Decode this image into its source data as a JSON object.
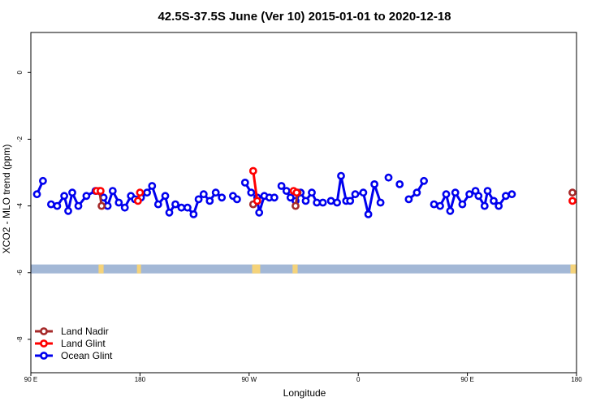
{
  "chart_data": {
    "type": "line",
    "title": "42.5S-37.5S June (Ver 10)   2015-01-01 to 2020-12-18",
    "xlabel": "Longitude",
    "ylabel": "XCO2 - MLO trend (ppm)",
    "xlim": [
      -90,
      180
    ],
    "ylim": [
      -9,
      1.2
    ],
    "x_ticks": [
      {
        "value": -90,
        "label": "90 E"
      },
      {
        "value": -36,
        "label": "180"
      },
      {
        "value": 18,
        "label": "90 W"
      },
      {
        "value": 72,
        "label": "0"
      },
      {
        "value": 126,
        "label": "90 E"
      },
      {
        "value": 180,
        "label": "180"
      }
    ],
    "y_ticks": [
      {
        "value": 0,
        "label": "0"
      },
      {
        "value": -2,
        "label": "-2"
      },
      {
        "value": -4,
        "label": "-4"
      },
      {
        "value": -6,
        "label": "-6"
      },
      {
        "value": -8,
        "label": "-8"
      }
    ],
    "grid": false,
    "legend_position": "bottom-left",
    "land_band": {
      "y": -5.95,
      "ocean_color": "#a3b8d6",
      "land_color": "#f5d37a"
    },
    "series": [
      {
        "name": "Land Nadir",
        "color": "#a52a2a",
        "segments": [
          [
            [
              -56,
              -3.55
            ],
            [
              -55,
              -4.0
            ]
          ],
          [
            [
              20,
              -3.95
            ]
          ],
          [
            [
              41,
              -4.0
            ],
            [
              42,
              -3.6
            ]
          ],
          [
            [
              178,
              -3.6
            ]
          ]
        ]
      },
      {
        "name": "Land Glint",
        "color": "#ff0000",
        "segments": [
          [
            [
              -57.5,
              -3.55
            ],
            [
              -55.5,
              -3.55
            ]
          ],
          [
            [
              -37,
              -3.85
            ],
            [
              -36,
              -3.6
            ]
          ],
          [
            [
              20,
              -2.95
            ],
            [
              22,
              -3.85
            ]
          ],
          [
            [
              40,
              -3.55
            ],
            [
              41.5,
              -3.6
            ]
          ],
          [
            [
              178,
              -3.85
            ]
          ]
        ]
      },
      {
        "name": "Ocean Glint",
        "color": "#0000ee",
        "segments": [
          [
            [
              -87,
              -3.65
            ],
            [
              -84,
              -3.25
            ]
          ],
          [
            [
              -80,
              -3.95
            ],
            [
              -77,
              -4.0
            ],
            [
              -73.5,
              -3.7
            ],
            [
              -71.5,
              -4.15
            ],
            [
              -69.5,
              -3.6
            ],
            [
              -66.5,
              -4.0
            ],
            [
              -62.5,
              -3.7
            ],
            [
              -58,
              -3.55
            ],
            [
              -54,
              -3.75
            ],
            [
              -52,
              -4.0
            ],
            [
              -49.5,
              -3.55
            ],
            [
              -46.5,
              -3.9
            ],
            [
              -43.5,
              -4.05
            ],
            [
              -40.5,
              -3.7
            ],
            [
              -38.5,
              -3.8
            ],
            [
              -35.5,
              -3.75
            ],
            [
              -32.5,
              -3.6
            ],
            [
              -30,
              -3.4
            ],
            [
              -27,
              -3.95
            ],
            [
              -23.5,
              -3.7
            ],
            [
              -21.5,
              -4.2
            ],
            [
              -18.5,
              -3.95
            ],
            [
              -15.5,
              -4.05
            ],
            [
              -12.5,
              -4.05
            ],
            [
              -9.5,
              -4.25
            ],
            [
              -7,
              -3.8
            ],
            [
              -4.5,
              -3.65
            ],
            [
              -1.5,
              -3.85
            ],
            [
              1.5,
              -3.6
            ],
            [
              4.5,
              -3.75
            ]
          ],
          [
            [
              10,
              -3.7
            ],
            [
              12,
              -3.8
            ]
          ],
          [
            [
              16,
              -3.3
            ],
            [
              19,
              -3.6
            ]
          ],
          [
            [
              22,
              -3.75
            ],
            [
              23,
              -4.2
            ],
            [
              25.5,
              -3.7
            ],
            [
              28,
              -3.75
            ],
            [
              30.5,
              -3.75
            ]
          ],
          [
            [
              34,
              -3.4
            ],
            [
              36.5,
              -3.55
            ],
            [
              38.5,
              -3.75
            ],
            [
              41,
              -3.85
            ],
            [
              43.5,
              -3.6
            ],
            [
              46,
              -3.85
            ],
            [
              49,
              -3.6
            ],
            [
              51.5,
              -3.9
            ],
            [
              54.5,
              -3.9
            ]
          ],
          [
            [
              58.5,
              -3.85
            ],
            [
              61.5,
              -3.9
            ],
            [
              63.5,
              -3.1
            ],
            [
              66,
              -3.85
            ],
            [
              68,
              -3.85
            ],
            [
              70.5,
              -3.65
            ],
            [
              74.5,
              -3.6
            ],
            [
              77,
              -4.25
            ],
            [
              80,
              -3.35
            ],
            [
              83,
              -3.9
            ]
          ],
          [
            [
              87,
              -3.15
            ]
          ],
          [
            [
              92.5,
              -3.35
            ]
          ],
          [
            [
              97,
              -3.8
            ],
            [
              101,
              -3.6
            ],
            [
              104.5,
              -3.25
            ]
          ],
          [
            [
              109.5,
              -3.95
            ],
            [
              112.5,
              -4.0
            ],
            [
              115.5,
              -3.65
            ],
            [
              117.5,
              -4.15
            ],
            [
              120,
              -3.6
            ],
            [
              123.5,
              -3.95
            ],
            [
              127,
              -3.65
            ],
            [
              130,
              -3.55
            ],
            [
              131.5,
              -3.7
            ],
            [
              134.5,
              -4.0
            ],
            [
              136,
              -3.55
            ],
            [
              139,
              -3.85
            ],
            [
              141.5,
              -4.0
            ],
            [
              145,
              -3.7
            ],
            [
              148,
              -3.65
            ]
          ]
        ]
      }
    ]
  }
}
